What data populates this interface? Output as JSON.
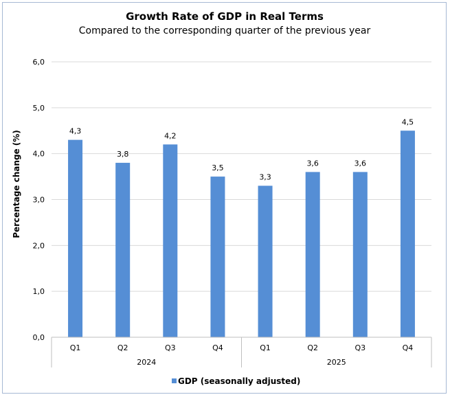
{
  "chart_data": {
    "type": "bar",
    "title": "Growth Rate of GDP in Real Terms",
    "subtitle": "Compared to the corresponding quarter of the previous year",
    "ylabel": "Percentage change (%)",
    "xlabel": "",
    "ylim": [
      0,
      6
    ],
    "yticks": [
      "0,0",
      "1,0",
      "2,0",
      "3,0",
      "4,0",
      "5,0",
      "6,0"
    ],
    "grid": true,
    "legend_position": "bottom",
    "categories": [
      "Q1",
      "Q2",
      "Q3",
      "Q4",
      "Q1",
      "Q2",
      "Q3",
      "Q4"
    ],
    "groups": [
      {
        "label": "2024",
        "count": 4
      },
      {
        "label": "2025",
        "count": 4
      }
    ],
    "series": [
      {
        "name": "GDP (seasonally adjusted)",
        "values": [
          4.3,
          3.8,
          4.2,
          3.5,
          3.3,
          3.6,
          3.6,
          4.5
        ],
        "labels": [
          "4,3",
          "3,8",
          "4,2",
          "3,5",
          "3,3",
          "3,6",
          "3,6",
          "4,5"
        ],
        "color": "#558ed5"
      }
    ]
  }
}
